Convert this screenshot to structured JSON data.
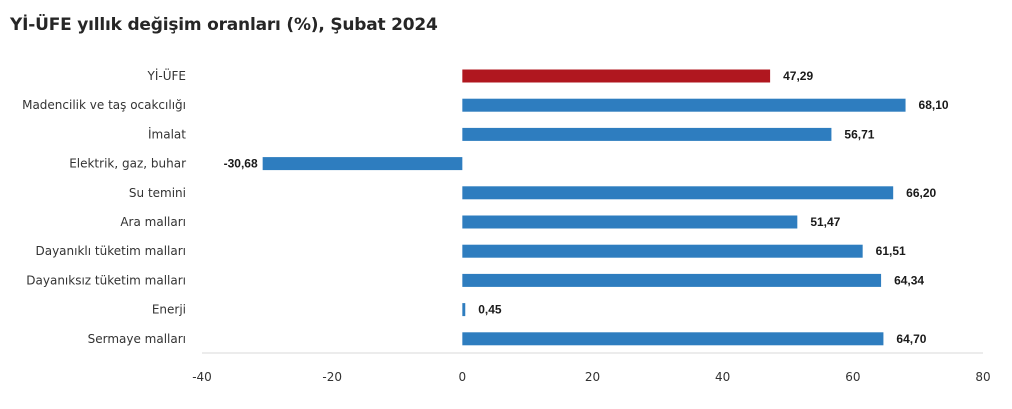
{
  "chart_data": {
    "type": "bar",
    "orientation": "horizontal",
    "title": "Yİ-ÜFE yıllık değişim oranları (%), Şubat 2024",
    "categories": [
      "Yİ-ÜFE",
      "Madencilik ve taş ocakcılığı",
      "İmalat",
      "Elektrik, gaz, buhar",
      "Su temini",
      "Ara malları",
      "Dayanıklı tüketim malları",
      "Dayanıksız tüketim malları",
      "Enerji",
      "Sermaye malları"
    ],
    "values": [
      47.29,
      68.1,
      56.71,
      -30.68,
      66.2,
      51.47,
      61.51,
      64.34,
      0.45,
      64.7
    ],
    "value_labels": [
      "47,29",
      "68,10",
      "56,71",
      "-30,68",
      "66,20",
      "51,47",
      "61,51",
      "64,34",
      "0,45",
      "64,70"
    ],
    "xlim": [
      -40,
      80
    ],
    "xticks": [
      -40,
      -20,
      0,
      20,
      40,
      60,
      80
    ],
    "xlabel": "",
    "ylabel": "",
    "grid": false,
    "colors": {
      "highlight": "#b0171f",
      "default": "#2e7dbf",
      "axis": "#d9d9d9"
    },
    "highlight_index": 0
  }
}
